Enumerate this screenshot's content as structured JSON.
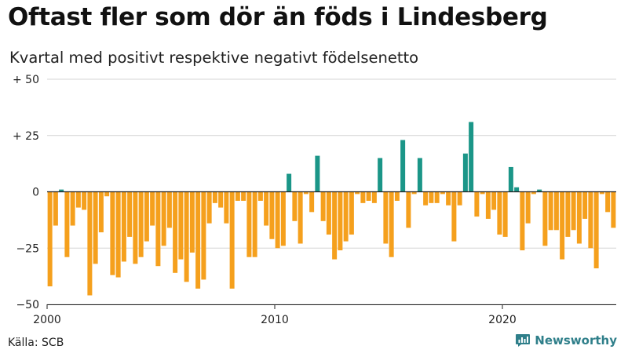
{
  "title": "Oftast fler som dör än föds i Lindesberg",
  "subtitle": "Kvartal med positivt respektive negativt födelsenetto",
  "source": "Källa: SCB",
  "brand": "Newsworthy",
  "colors": {
    "positive": "#1b9688",
    "negative": "#f5a01d",
    "grid": "#d4d4d4",
    "axis": "#222222",
    "logo": "#2f7f8a"
  },
  "chart_data": {
    "type": "bar",
    "title": "Oftast fler som dör än föds i Lindesberg",
    "subtitle": "Kvartal med positivt respektive negativt födelsenetto",
    "xlabel": "",
    "ylabel": "",
    "ylim": [
      -50,
      50
    ],
    "start_year": 2000,
    "periods_per_year": 4,
    "y_ticks": [
      50,
      25,
      0,
      -25,
      -50
    ],
    "y_tick_labels": [
      "+ 50",
      "+ 25",
      "0",
      "−25",
      "−50"
    ],
    "x_ticks": [
      2000,
      2010,
      2020
    ],
    "x_tick_labels": [
      "2000",
      "2010",
      "2020"
    ],
    "values": [
      -42,
      -15,
      1,
      -29,
      -15,
      -7,
      -8,
      -46,
      -32,
      -18,
      -2,
      -37,
      -38,
      -31,
      -20,
      -32,
      -29,
      -22,
      -15,
      -33,
      -24,
      -16,
      -36,
      -30,
      -40,
      -27,
      -43,
      -39,
      -14,
      -5,
      -7,
      -14,
      -43,
      -4,
      -4,
      -29,
      -29,
      -4,
      -15,
      -21,
      -25,
      -24,
      8,
      -13,
      -23,
      -1,
      -9,
      16,
      -13,
      -19,
      -30,
      -26,
      -22,
      -19,
      -1,
      -5,
      -4,
      -5,
      15,
      -23,
      -29,
      -4,
      23,
      -16,
      -1,
      15,
      -6,
      -5,
      -5,
      -1,
      -6,
      -22,
      -6,
      17,
      31,
      -11,
      -1,
      -12,
      -8,
      -19,
      -20,
      11,
      2,
      -26,
      -14,
      -1,
      1,
      -24,
      -17,
      -17,
      -30,
      -20,
      -17,
      -23,
      -12,
      -25,
      -34,
      -1,
      -9,
      -16
    ]
  }
}
